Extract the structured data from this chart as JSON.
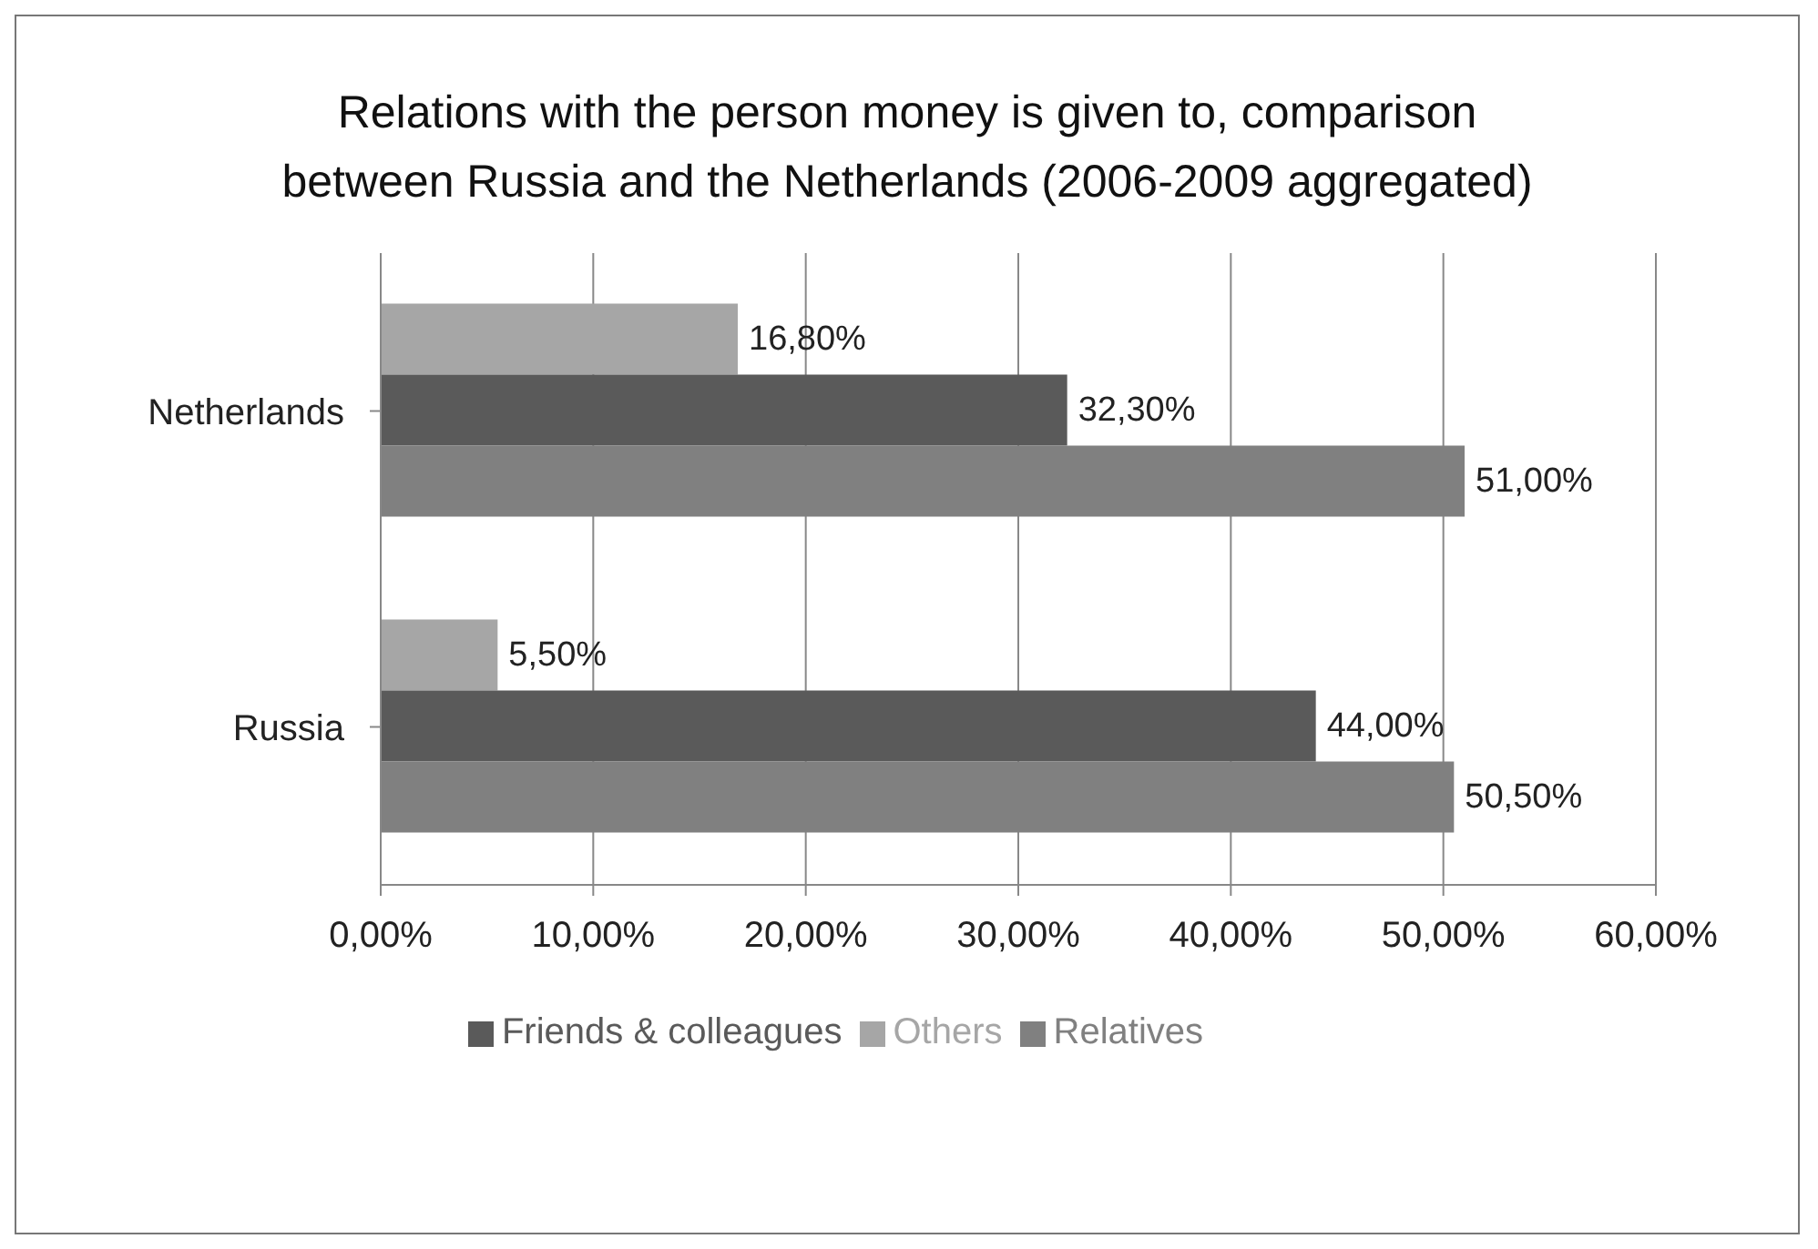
{
  "chart_data": {
    "type": "bar",
    "orientation": "horizontal",
    "title": "Relations with the person money is given to, comparison between Russia and the Netherlands (2006-2009 aggregated)",
    "categories": [
      "Netherlands",
      "Russia"
    ],
    "series": [
      {
        "name": "Others",
        "color": "#a6a6a6",
        "values": [
          16.8,
          5.5
        ],
        "value_labels": [
          "16,80%",
          "5,50%"
        ]
      },
      {
        "name": "Friends & colleagues",
        "color": "#5a5a5a",
        "values": [
          32.3,
          44.0
        ],
        "value_labels": [
          "32,30%",
          "44,00%"
        ]
      },
      {
        "name": "Relatives",
        "color": "#808080",
        "values": [
          51.0,
          50.5
        ],
        "value_labels": [
          "51,00%",
          "50,50%"
        ]
      }
    ],
    "xlim": [
      0,
      60
    ],
    "xticks": [
      {
        "value": 0,
        "label": "0,00%"
      },
      {
        "value": 10,
        "label": "10,00%"
      },
      {
        "value": 20,
        "label": "20,00%"
      },
      {
        "value": 30,
        "label": "30,00%"
      },
      {
        "value": 40,
        "label": "40,00%"
      },
      {
        "value": 50,
        "label": "50,00%"
      },
      {
        "value": 60,
        "label": "60,00%"
      }
    ],
    "grid": "x",
    "legend": "bottom"
  }
}
